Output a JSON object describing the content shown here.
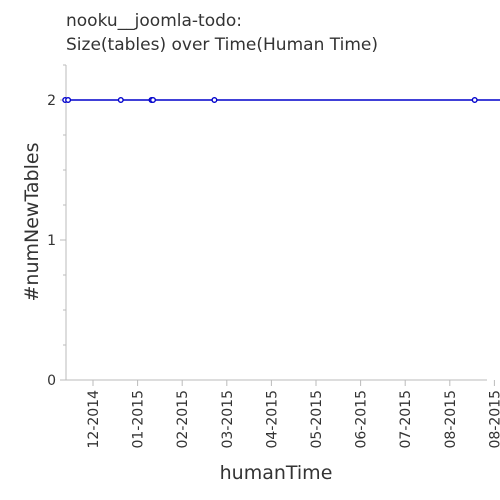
{
  "chart_data": {
    "type": "line",
    "title_line1": "nooku__joomla-todo:",
    "title_line2": "Size(tables) over Time(Human Time)",
    "xlabel": "humanTime",
    "ylabel": "#numNewTables",
    "x_ticks": [
      "12-2014",
      "01-2015",
      "02-2015",
      "03-2015",
      "04-2015",
      "05-2015",
      "06-2015",
      "07-2015",
      "08-2015",
      "08-2015"
    ],
    "y_ticks": [
      "0",
      "1",
      "2"
    ],
    "ylim": [
      0,
      2.25
    ],
    "grid": false,
    "series": [
      {
        "color": "#0000cc",
        "points": [
          {
            "x": "2014-11-12",
            "y": 2
          },
          {
            "x": "2014-11-14",
            "y": 2
          },
          {
            "x": "2014-12-20",
            "y": 2
          },
          {
            "x": "2015-01-10",
            "y": 2
          },
          {
            "x": "2015-01-11",
            "y": 2
          },
          {
            "x": "2015-02-22",
            "y": 2
          },
          {
            "x": "2015-08-19",
            "y": 2
          },
          {
            "x": "2015-09-08",
            "y": 2
          }
        ]
      }
    ]
  }
}
